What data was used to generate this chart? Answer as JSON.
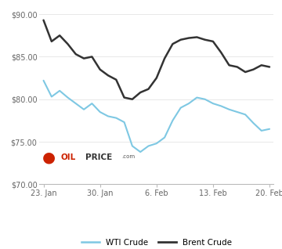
{
  "wti_x": [
    0,
    1,
    2,
    3,
    4,
    5,
    6,
    7,
    8,
    9,
    10,
    11,
    12,
    13,
    14,
    15,
    16,
    17,
    18,
    19,
    20,
    21,
    22,
    23,
    24,
    25,
    26,
    27,
    28
  ],
  "wti_y": [
    82.2,
    80.3,
    81.0,
    80.2,
    79.5,
    78.8,
    79.5,
    78.5,
    78.0,
    77.8,
    77.3,
    74.5,
    73.8,
    74.5,
    74.8,
    75.5,
    77.5,
    79.0,
    79.5,
    80.2,
    80.0,
    79.5,
    79.2,
    78.8,
    78.5,
    78.2,
    77.2,
    76.3,
    76.5
  ],
  "brent_x": [
    0,
    1,
    2,
    3,
    4,
    5,
    6,
    7,
    8,
    9,
    10,
    11,
    12,
    13,
    14,
    15,
    16,
    17,
    18,
    19,
    20,
    21,
    22,
    23,
    24,
    25,
    26,
    27,
    28
  ],
  "brent_y": [
    89.3,
    86.8,
    87.5,
    86.5,
    85.3,
    84.8,
    85.0,
    83.5,
    82.8,
    82.3,
    80.2,
    80.0,
    80.8,
    81.2,
    82.5,
    84.8,
    86.5,
    87.0,
    87.2,
    87.3,
    87.0,
    86.8,
    85.5,
    84.0,
    83.8,
    83.2,
    83.5,
    84.0,
    83.8
  ],
  "wti_color": "#7ec8e3",
  "brent_color": "#333333",
  "ylim": [
    70.0,
    90.5
  ],
  "yticks": [
    70.0,
    75.0,
    80.0,
    85.0,
    90.0
  ],
  "xlim": [
    -0.5,
    28.5
  ],
  "xtick_positions": [
    0,
    7,
    14,
    21,
    28
  ],
  "xtick_labels": [
    "23. Jan",
    "30. Jan",
    "6. Feb",
    "13. Feb",
    "20. Feb"
  ],
  "background_color": "#ffffff",
  "grid_color": "#e8e8e8",
  "wti_label": "WTI Crude",
  "brent_label": "Brent Crude",
  "wti_linewidth": 1.5,
  "brent_linewidth": 1.8,
  "oilprice_circle_color": "#cc2200",
  "oilprice_text_color": "#333333",
  "oilprice_oil_color": "#cc2200",
  "oilprice_com_color": "#555555"
}
